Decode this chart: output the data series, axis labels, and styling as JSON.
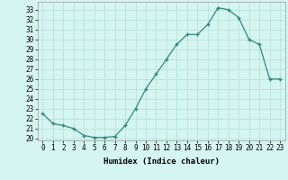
{
  "x": [
    0,
    1,
    2,
    3,
    4,
    5,
    6,
    7,
    8,
    9,
    10,
    11,
    12,
    13,
    14,
    15,
    16,
    17,
    18,
    19,
    20,
    21,
    22,
    23
  ],
  "y": [
    22.5,
    21.5,
    21.3,
    21.0,
    20.3,
    20.1,
    20.1,
    20.2,
    21.3,
    23.0,
    25.0,
    26.5,
    28.0,
    29.5,
    30.5,
    30.5,
    31.5,
    33.2,
    33.0,
    32.2,
    30.0,
    29.5,
    26.0,
    26.0
  ],
  "line_color": "#2e8b7a",
  "marker": "+",
  "marker_size": 3,
  "marker_lw": 1.0,
  "bg_color": "#d4f5f0",
  "grid_color": "#b5ddd8",
  "xlabel": "Humidex (Indice chaleur)",
  "xlim": [
    -0.5,
    23.5
  ],
  "ylim": [
    19.8,
    33.8
  ],
  "yticks": [
    20,
    21,
    22,
    23,
    24,
    25,
    26,
    27,
    28,
    29,
    30,
    31,
    32,
    33
  ],
  "xtick_labels": [
    "0",
    "1",
    "2",
    "3",
    "4",
    "5",
    "6",
    "7",
    "8",
    "9",
    "10",
    "11",
    "12",
    "13",
    "14",
    "15",
    "16",
    "17",
    "18",
    "19",
    "20",
    "21",
    "22",
    "23"
  ],
  "tick_fontsize": 5.5,
  "label_fontsize": 6.5,
  "linewidth": 0.9
}
